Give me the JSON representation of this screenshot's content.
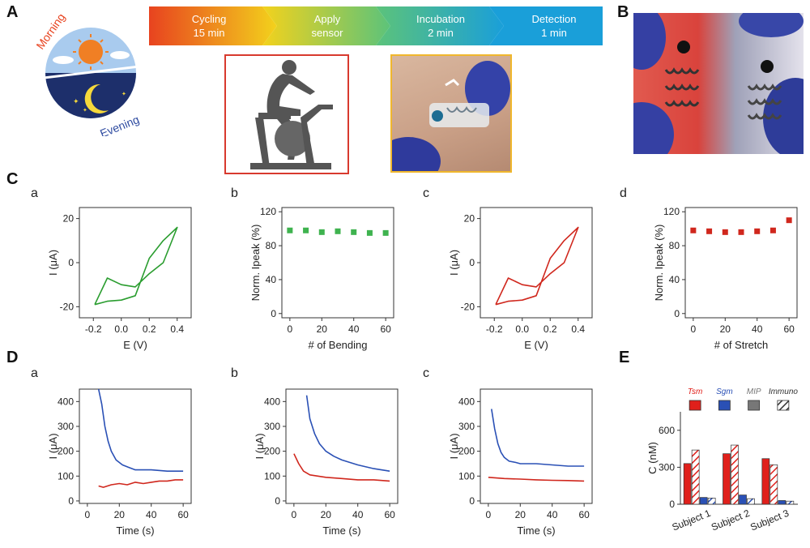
{
  "labels": {
    "A": "A",
    "B": "B",
    "C": "C",
    "D": "D",
    "E": "E"
  },
  "sublabels": {
    "Ca": "a",
    "Cb": "b",
    "Cc": "c",
    "Cd": "d",
    "Da": "a",
    "Db": "b",
    "Dc": "c"
  },
  "clock": {
    "morning": "Morning",
    "evening": "Evening"
  },
  "steps": [
    {
      "line1": "Cycling",
      "line2": "15 min",
      "color": "#e8431f"
    },
    {
      "line1": "Apply",
      "line2": "sensor",
      "color": "#f3d21c"
    },
    {
      "line1": "Incubation",
      "line2": "2 min",
      "color": "#5cc37a"
    },
    {
      "line1": "Detection",
      "line2": "1 min",
      "color": "#1a9fd9"
    }
  ],
  "colors": {
    "green": "#2a9d2f",
    "red": "#d0271d",
    "blue": "#2a50b5",
    "lightred": "#e35a45"
  },
  "chart_data": [
    {
      "id": "Ca",
      "type": "line",
      "xlabel": "E (V)",
      "ylabel": "I (μA)",
      "xlim": [
        -0.3,
        0.5
      ],
      "ylim": [
        -25,
        25
      ],
      "xticks": [
        -0.2,
        0.0,
        0.2,
        0.4
      ],
      "xticklabels": [
        "-0.2",
        "0.0",
        "0.2",
        "0.4"
      ],
      "yticks": [
        -20,
        0,
        20
      ],
      "yticklabels": [
        "-20",
        "0",
        "20"
      ],
      "series": [
        {
          "color": "#2a9d2f",
          "x": [
            -0.19,
            -0.1,
            0.0,
            0.1,
            0.2,
            0.3,
            0.4,
            0.4,
            0.3,
            0.2,
            0.1,
            0.0,
            -0.1,
            -0.19
          ],
          "y": [
            -19,
            -17.5,
            -17,
            -15,
            2,
            10,
            16,
            16,
            0,
            -5,
            -11,
            -10,
            -7,
            -19
          ]
        }
      ]
    },
    {
      "id": "Cb",
      "type": "scatter",
      "xlabel": "# of Bending",
      "ylabel": "Norm. Ipeak (%)",
      "xlim": [
        -5,
        65
      ],
      "ylim": [
        -5,
        125
      ],
      "xticks": [
        0,
        20,
        40,
        60
      ],
      "xticklabels": [
        "0",
        "20",
        "40",
        "60"
      ],
      "yticks": [
        0,
        40,
        80,
        120
      ],
      "yticklabels": [
        "0",
        "40",
        "80",
        "120"
      ],
      "series": [
        {
          "color": "#3fb34f",
          "x": [
            0,
            10,
            20,
            30,
            40,
            50,
            60
          ],
          "y": [
            98,
            98,
            96,
            97,
            96,
            95,
            95
          ]
        }
      ]
    },
    {
      "id": "Cc",
      "type": "line",
      "xlabel": "E (V)",
      "ylabel": "I (μA)",
      "xlim": [
        -0.3,
        0.5
      ],
      "ylim": [
        -25,
        25
      ],
      "xticks": [
        -0.2,
        0.0,
        0.2,
        0.4
      ],
      "xticklabels": [
        "-0.2",
        "0.0",
        "0.2",
        "0.4"
      ],
      "yticks": [
        -20,
        0,
        20
      ],
      "yticklabels": [
        "-20",
        "0",
        "20"
      ],
      "series": [
        {
          "color": "#d0271d",
          "x": [
            -0.19,
            -0.1,
            0.0,
            0.1,
            0.2,
            0.3,
            0.4,
            0.4,
            0.3,
            0.2,
            0.1,
            0.0,
            -0.1,
            -0.19
          ],
          "y": [
            -19,
            -17.5,
            -17,
            -15,
            2,
            10,
            16,
            16,
            0,
            -5,
            -11,
            -10,
            -7,
            -19
          ]
        }
      ]
    },
    {
      "id": "Cd",
      "type": "scatter",
      "xlabel": "# of Stretch",
      "ylabel": "Norm. Ipeak (%)",
      "xlim": [
        -5,
        65
      ],
      "ylim": [
        -5,
        125
      ],
      "xticks": [
        0,
        20,
        40,
        60
      ],
      "xticklabels": [
        "0",
        "20",
        "40",
        "60"
      ],
      "yticks": [
        0,
        40,
        80,
        120
      ],
      "yticklabels": [
        "0",
        "40",
        "80",
        "120"
      ],
      "series": [
        {
          "color": "#d0271d",
          "x": [
            0,
            10,
            20,
            30,
            40,
            50,
            60
          ],
          "y": [
            98,
            97,
            96,
            96,
            97,
            98,
            110
          ]
        }
      ]
    },
    {
      "id": "Da",
      "type": "line",
      "xlabel": "Time (s)",
      "ylabel": "I (μA)",
      "xlim": [
        -5,
        65
      ],
      "ylim": [
        -10,
        450
      ],
      "xticks": [
        0,
        20,
        40,
        60
      ],
      "xticklabels": [
        "0",
        "20",
        "40",
        "60"
      ],
      "yticks": [
        0,
        100,
        200,
        300,
        400
      ],
      "yticklabels": [
        "0",
        "100",
        "200",
        "300",
        "400"
      ],
      "series": [
        {
          "color": "#2a50b5",
          "x": [
            7,
            9,
            11,
            13,
            15,
            18,
            22,
            26,
            30,
            40,
            50,
            60
          ],
          "y": [
            450,
            390,
            300,
            240,
            200,
            165,
            145,
            135,
            125,
            125,
            120,
            120
          ]
        },
        {
          "color": "#d0271d",
          "x": [
            7,
            10,
            15,
            20,
            25,
            30,
            35,
            40,
            45,
            50,
            55,
            60
          ],
          "y": [
            60,
            55,
            65,
            70,
            65,
            75,
            70,
            75,
            80,
            80,
            85,
            85
          ]
        }
      ]
    },
    {
      "id": "Db",
      "type": "line",
      "xlabel": "Time (s)",
      "ylabel": "I (μA)",
      "xlim": [
        -5,
        65
      ],
      "ylim": [
        -10,
        450
      ],
      "xticks": [
        0,
        20,
        40,
        60
      ],
      "xticklabels": [
        "0",
        "20",
        "40",
        "60"
      ],
      "yticks": [
        0,
        100,
        200,
        300,
        400
      ],
      "yticklabels": [
        "0",
        "100",
        "200",
        "300",
        "400"
      ],
      "series": [
        {
          "color": "#2a50b5",
          "x": [
            8,
            10,
            13,
            16,
            20,
            25,
            30,
            40,
            50,
            60
          ],
          "y": [
            425,
            330,
            270,
            230,
            200,
            180,
            165,
            145,
            130,
            120
          ]
        },
        {
          "color": "#d0271d",
          "x": [
            0,
            3,
            6,
            10,
            15,
            20,
            30,
            40,
            50,
            60
          ],
          "y": [
            190,
            150,
            120,
            105,
            100,
            95,
            90,
            85,
            85,
            80
          ]
        }
      ]
    },
    {
      "id": "Dc",
      "type": "line",
      "xlabel": "Time (s)",
      "ylabel": "I (μA)",
      "xlim": [
        -5,
        65
      ],
      "ylim": [
        -10,
        450
      ],
      "xticks": [
        0,
        20,
        40,
        60
      ],
      "xticklabels": [
        "0",
        "20",
        "40",
        "60"
      ],
      "yticks": [
        0,
        100,
        200,
        300,
        400
      ],
      "yticklabels": [
        "0",
        "100",
        "200",
        "300",
        "400"
      ],
      "series": [
        {
          "color": "#2a50b5",
          "x": [
            2,
            4,
            6,
            8,
            10,
            13,
            17,
            20,
            30,
            40,
            50,
            60
          ],
          "y": [
            370,
            290,
            230,
            195,
            175,
            160,
            155,
            150,
            150,
            145,
            140,
            140
          ]
        },
        {
          "color": "#d0271d",
          "x": [
            0,
            10,
            20,
            30,
            40,
            50,
            60
          ],
          "y": [
            95,
            90,
            88,
            85,
            83,
            82,
            80
          ]
        }
      ]
    },
    {
      "id": "E",
      "type": "bar",
      "ylabel": "C (nM)",
      "ylim": [
        0,
        750
      ],
      "yticks": [
        0,
        300,
        600
      ],
      "yticklabels": [
        "0",
        "300",
        "600"
      ],
      "categories": [
        "Subject 1",
        "Subject 2",
        "Subject 3"
      ],
      "legend": [
        {
          "name": "Tsm",
          "style": "solid",
          "color": "#e0201b"
        },
        {
          "name": "Sgm",
          "style": "solid",
          "color": "#2a50b5"
        },
        {
          "name": "MIP",
          "style": "solid",
          "color": "#777777"
        },
        {
          "name": "Immuno",
          "style": "hatch",
          "color": "#333333"
        }
      ],
      "series": [
        {
          "name": "Tsm",
          "style": "solid",
          "color": "#e0201b",
          "values": [
            330,
            410,
            370
          ]
        },
        {
          "name": "Tsm",
          "style": "hatch",
          "color": "#e0201b",
          "values": [
            440,
            480,
            320
          ]
        },
        {
          "name": "Sgm",
          "style": "solid",
          "color": "#2a50b5",
          "values": [
            55,
            75,
            30
          ]
        },
        {
          "name": "Sgm",
          "style": "hatch",
          "color": "#2a50b5",
          "values": [
            50,
            45,
            25
          ]
        }
      ]
    }
  ]
}
